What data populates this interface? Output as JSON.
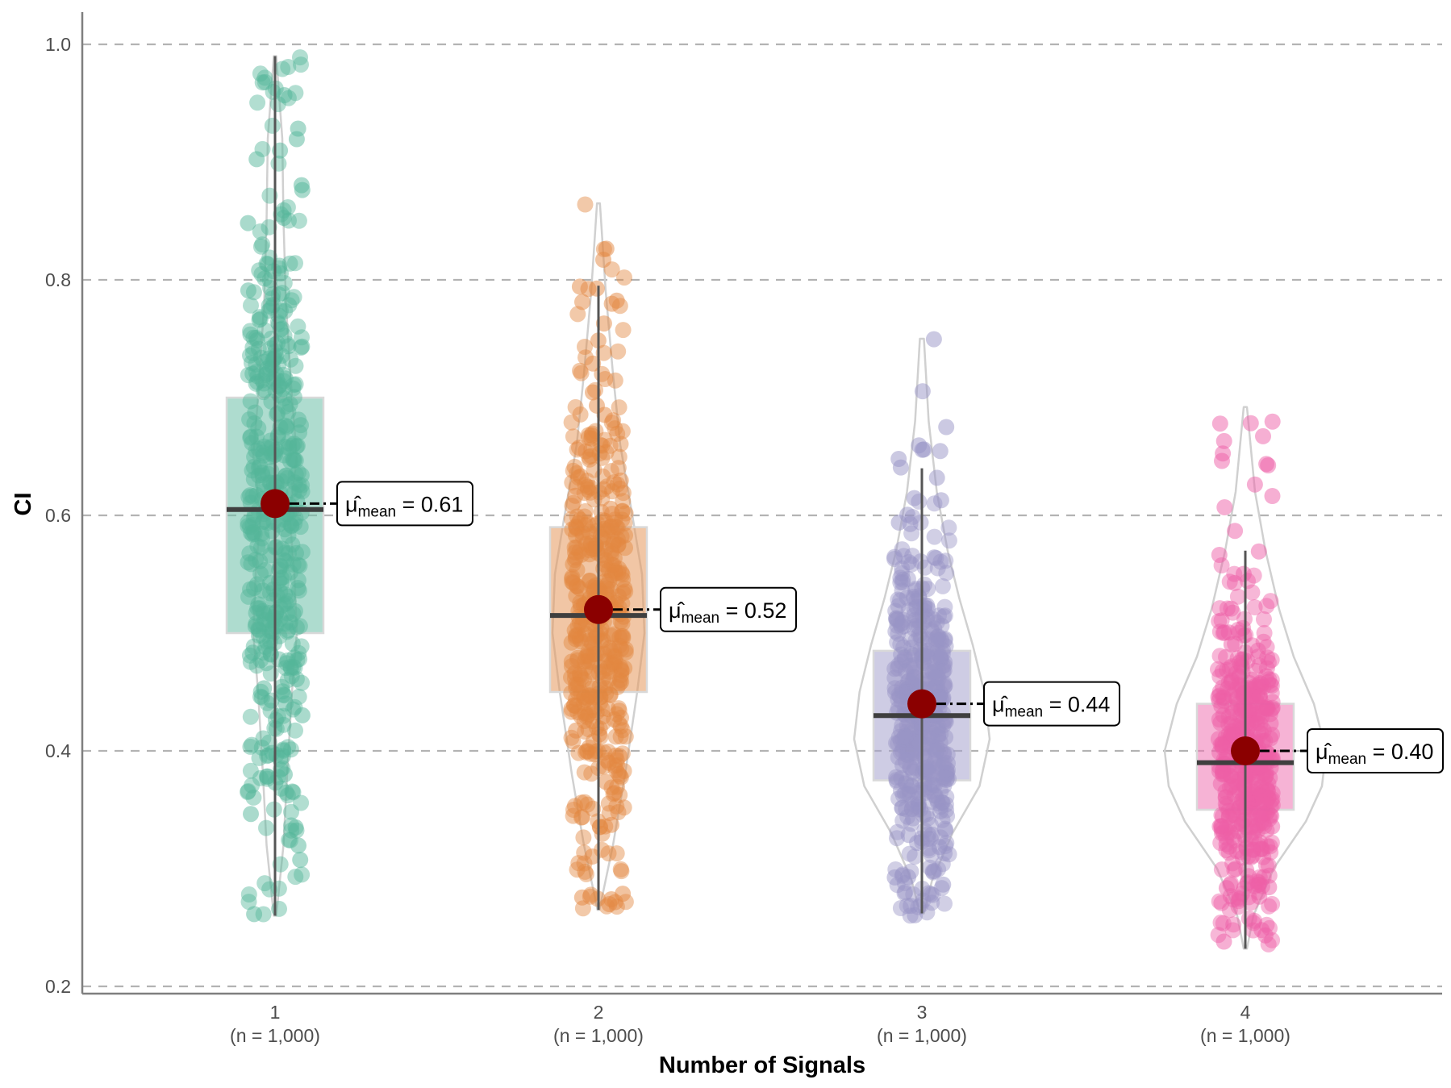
{
  "chart_data": {
    "type": "violin-box-scatter",
    "title": "",
    "xlabel": "Number of Signals",
    "ylabel": "CI",
    "ylim": [
      0.2,
      1.02
    ],
    "yticks": [
      0.2,
      0.4,
      0.6,
      0.8,
      1.0
    ],
    "ytick_labels": [
      "0.2",
      "0.4",
      "0.6",
      "0.8",
      "1.0"
    ],
    "grid": "horizontal dashed",
    "categories": [
      "1",
      "2",
      "3",
      "4"
    ],
    "category_counts": [
      "(n = 1,000)",
      "(n = 1,000)",
      "(n = 1,000)",
      "(n = 1,000)"
    ],
    "series": [
      {
        "name": "1",
        "color": "#1b9e77",
        "min": 0.26,
        "q1": 0.5,
        "median": 0.605,
        "q3": 0.7,
        "max": 0.99,
        "whisker_low": 0.26,
        "whisker_high": 0.99,
        "mean": 0.61,
        "mean_label_value": "0.61"
      },
      {
        "name": "2",
        "color": "#d95f02",
        "min": 0.265,
        "q1": 0.45,
        "median": 0.515,
        "q3": 0.59,
        "max": 0.865,
        "whisker_low": 0.265,
        "whisker_high": 0.795,
        "mean": 0.52,
        "mean_label_value": "0.52"
      },
      {
        "name": "3",
        "color": "#7570b3",
        "min": 0.26,
        "q1": 0.375,
        "median": 0.43,
        "q3": 0.485,
        "max": 0.75,
        "whisker_low": 0.262,
        "whisker_high": 0.64,
        "mean": 0.44,
        "mean_label_value": "0.44"
      },
      {
        "name": "4",
        "color": "#e7298a",
        "min": 0.23,
        "q1": 0.35,
        "median": 0.39,
        "q3": 0.44,
        "max": 0.692,
        "whisker_low": 0.232,
        "whisker_high": 0.57,
        "mean": 0.4,
        "mean_label_value": "0.40"
      }
    ],
    "annotation_symbol": "μ̂",
    "annotation_subscript": "mean",
    "annotation_equals": "=",
    "mean_point_color": "#8b0000"
  }
}
